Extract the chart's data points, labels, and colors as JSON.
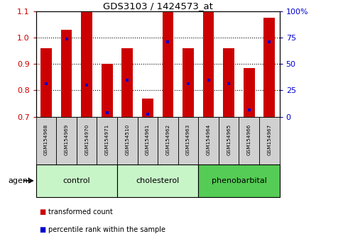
{
  "title": "GDS3103 / 1424573_at",
  "samples": [
    "GSM154968",
    "GSM154969",
    "GSM154970",
    "GSM154971",
    "GSM154510",
    "GSM154961",
    "GSM154962",
    "GSM154963",
    "GSM154964",
    "GSM154965",
    "GSM154966",
    "GSM154967"
  ],
  "bar_tops": [
    0.96,
    1.03,
    1.1,
    0.9,
    0.96,
    0.77,
    1.1,
    0.96,
    1.1,
    0.96,
    0.885,
    1.075
  ],
  "bar_base": 0.7,
  "blue_positions": [
    0.825,
    0.995,
    0.82,
    0.715,
    0.84,
    0.71,
    0.985,
    0.825,
    0.84,
    0.825,
    0.725,
    0.985
  ],
  "groups": [
    {
      "label": "control",
      "indices": [
        0,
        1,
        2,
        3
      ],
      "color": "#c8f5c8"
    },
    {
      "label": "cholesterol",
      "indices": [
        4,
        5,
        6,
        7
      ],
      "color": "#c8f5c8"
    },
    {
      "label": "phenobarbital",
      "indices": [
        8,
        9,
        10,
        11
      ],
      "color": "#55cc55"
    }
  ],
  "ylim": [
    0.7,
    1.1
  ],
  "yticks_left": [
    0.7,
    0.8,
    0.9,
    1.0,
    1.1
  ],
  "yticks_right": [
    0,
    25,
    50,
    75,
    100
  ],
  "bar_color": "#cc0000",
  "blue_color": "#0000cc",
  "bg_color": "#ffffff",
  "tick_label_color_left": "#cc0000",
  "tick_label_color_right": "#0000cc",
  "agent_label": "agent",
  "legend_items": [
    "transformed count",
    "percentile rank within the sample"
  ],
  "bar_width": 0.55,
  "sample_box_color": "#d0d0d0"
}
